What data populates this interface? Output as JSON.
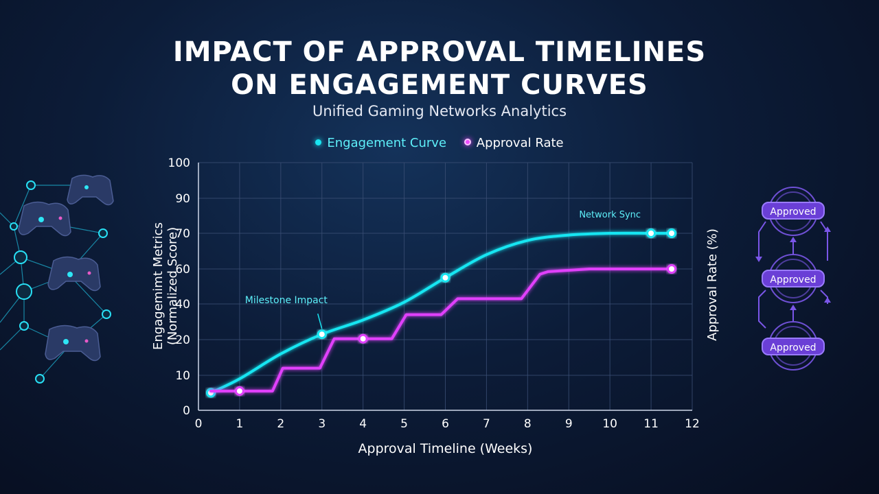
{
  "title_line1": "IMPACT OF APPROVAL TIMELINES",
  "title_line2": "ON ENGAGEMENT CURVES",
  "subtitle": "Unified Gaming Networks Analytics",
  "colors": {
    "engagement": "#19e6f2",
    "approval": "#e040fb",
    "badge": "#6a3fd6"
  },
  "badges": [
    "Approved",
    "Approved",
    "Approved"
  ],
  "chart_data": {
    "type": "line",
    "xlabel": "Approval Timeline (Weeks)",
    "ylabel_left": "Engagemimt Metrics (Normalized Score)",
    "ylabel_right": "Approval Rate (%)",
    "x_ticks": [
      "0",
      "1",
      "2",
      "3",
      "4",
      "5",
      "6",
      "7",
      "8",
      "9",
      "10",
      "11",
      "12"
    ],
    "y_ticks": [
      "0",
      "10",
      "20",
      "40",
      "60",
      "70",
      "90",
      "100"
    ],
    "xlim": [
      0,
      12
    ],
    "ylim": [
      0,
      100
    ],
    "grid": true,
    "legend_position": "top-center",
    "series": [
      {
        "name": "Engagement Curve",
        "color": "#19e6f2",
        "x": [
          0.3,
          1,
          2,
          3,
          4,
          5,
          6,
          7,
          8,
          9,
          10,
          11,
          11.5
        ],
        "y": [
          5,
          9,
          16,
          23,
          31,
          41,
          55,
          64,
          68,
          69.5,
          70,
          70,
          70
        ],
        "markers": [
          [
            0.3,
            5
          ],
          [
            3,
            23
          ],
          [
            6,
            55
          ],
          [
            11,
            70
          ],
          [
            11.5,
            70
          ]
        ]
      },
      {
        "name": "Approval Rate",
        "color": "#e040fb",
        "x": [
          0.3,
          1.8,
          2.05,
          2.95,
          3.3,
          4.7,
          5.05,
          5.9,
          6.3,
          7.85,
          8.3,
          8.5,
          9.5,
          11.5
        ],
        "y": [
          5.5,
          5.5,
          12,
          12,
          20.5,
          20.5,
          34,
          34,
          43,
          43,
          57,
          58.5,
          60,
          60
        ],
        "markers": [
          [
            1,
            5.5
          ],
          [
            4,
            20.5
          ],
          [
            11.5,
            60
          ]
        ]
      }
    ],
    "annotations": [
      {
        "text": "Milestone Impact",
        "x": 3,
        "y": 23
      },
      {
        "text": "Network Sync",
        "x": 11,
        "y": 70
      }
    ]
  }
}
